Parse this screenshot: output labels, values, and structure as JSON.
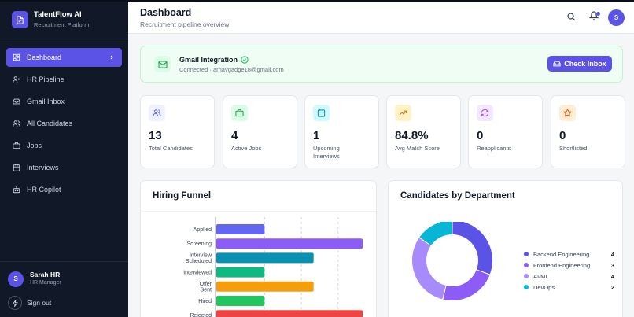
{
  "brand": {
    "title": "TalentFlow AI",
    "subtitle": "Recruitment Platform"
  },
  "sidebar": {
    "items": [
      {
        "label": "Dashboard",
        "icon": "dashboard-icon",
        "active": true
      },
      {
        "label": "HR Pipeline",
        "icon": "user-plus-icon"
      },
      {
        "label": "Gmail Inbox",
        "icon": "inbox-icon"
      },
      {
        "label": "All Candidates",
        "icon": "users-icon"
      },
      {
        "label": "Jobs",
        "icon": "briefcase-icon"
      },
      {
        "label": "Interviews",
        "icon": "calendar-icon"
      },
      {
        "label": "HR Copilot",
        "icon": "bot-icon"
      }
    ],
    "user": {
      "initial": "S",
      "name": "Sarah HR",
      "role": "HR Manager"
    },
    "signout_label": "Sign out"
  },
  "header": {
    "title": "Dashboard",
    "subtitle": "Recruitment pipeline overview",
    "avatar_initial": "S"
  },
  "gmail": {
    "title": "Gmail Integration",
    "status": "Connected · arnavgadge18@gmail.com",
    "button_label": "Check Inbox"
  },
  "stats": [
    {
      "value": "13",
      "label": "Total Candidates",
      "icon": "users-icon",
      "color": "#6366f1"
    },
    {
      "value": "4",
      "label": "Active Jobs",
      "icon": "briefcase-icon",
      "color": "#22c55e"
    },
    {
      "value": "1",
      "label": "Upcoming Interviews",
      "icon": "calendar-icon",
      "color": "#06b6d4"
    },
    {
      "value": "84.8%",
      "label": "Avg Match Score",
      "icon": "trending-up-icon",
      "color": "#f59e0b"
    },
    {
      "value": "0",
      "label": "Reapplicants",
      "icon": "refresh-icon",
      "color": "#a855f7"
    },
    {
      "value": "0",
      "label": "Shortlisted",
      "icon": "star-icon",
      "color": "#f97316"
    }
  ],
  "funnel": {
    "title": "Hiring Funnel",
    "chart_data": {
      "type": "bar",
      "orientation": "horizontal",
      "categories": [
        "Applied",
        "Screening",
        "Interview Scheduled",
        "Interviewed",
        "Offer Sent",
        "Hired",
        "Rejected"
      ],
      "values": [
        2,
        6,
        4,
        2,
        4,
        2,
        6
      ],
      "colors": [
        "#6366f1",
        "#8b5cf6",
        "#0891b2",
        "#10b981",
        "#f59e0b",
        "#22c55e",
        "#ef4444"
      ],
      "xlim": [
        0,
        6
      ],
      "grid": true
    }
  },
  "department": {
    "title": "Candidates by Department",
    "chart_data": {
      "type": "pie",
      "donut": true,
      "categories": [
        "Backend Engineering",
        "Frontend Engineering",
        "AI/ML",
        "DevOps"
      ],
      "values": [
        4,
        3,
        4,
        2
      ],
      "colors": [
        "#5b52e6",
        "#8b5cf6",
        "#a78bfa",
        "#06b6d4"
      ]
    }
  }
}
